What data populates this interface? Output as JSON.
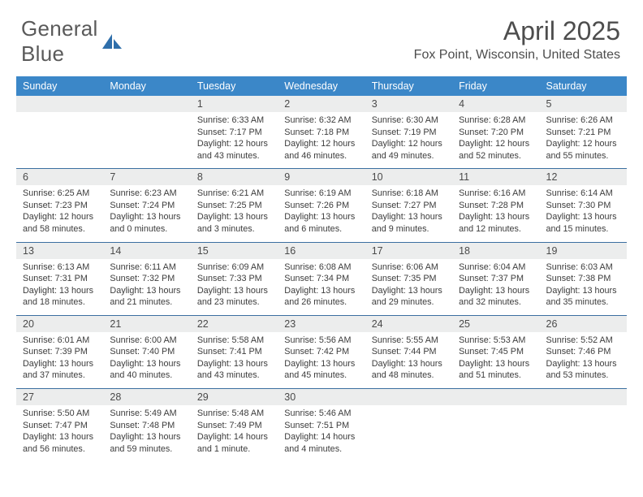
{
  "brand": {
    "part1": "General",
    "part2": "Blue"
  },
  "title": "April 2025",
  "location": "Fox Point, Wisconsin, United States",
  "colors": {
    "header_bg": "#3b87c8",
    "header_text": "#ffffff",
    "daynum_bg": "#eceded",
    "row_border": "#3b6fa0",
    "text": "#3c3c3c",
    "title_text": "#4d4d4d",
    "logo_text": "#5a5a5a",
    "logo_icon": "#2f6fab"
  },
  "days_of_week": [
    "Sunday",
    "Monday",
    "Tuesday",
    "Wednesday",
    "Thursday",
    "Friday",
    "Saturday"
  ],
  "weeks": [
    [
      null,
      null,
      {
        "n": "1",
        "sr": "Sunrise: 6:33 AM",
        "ss": "Sunset: 7:17 PM",
        "d1": "Daylight: 12 hours",
        "d2": "and 43 minutes."
      },
      {
        "n": "2",
        "sr": "Sunrise: 6:32 AM",
        "ss": "Sunset: 7:18 PM",
        "d1": "Daylight: 12 hours",
        "d2": "and 46 minutes."
      },
      {
        "n": "3",
        "sr": "Sunrise: 6:30 AM",
        "ss": "Sunset: 7:19 PM",
        "d1": "Daylight: 12 hours",
        "d2": "and 49 minutes."
      },
      {
        "n": "4",
        "sr": "Sunrise: 6:28 AM",
        "ss": "Sunset: 7:20 PM",
        "d1": "Daylight: 12 hours",
        "d2": "and 52 minutes."
      },
      {
        "n": "5",
        "sr": "Sunrise: 6:26 AM",
        "ss": "Sunset: 7:21 PM",
        "d1": "Daylight: 12 hours",
        "d2": "and 55 minutes."
      }
    ],
    [
      {
        "n": "6",
        "sr": "Sunrise: 6:25 AM",
        "ss": "Sunset: 7:23 PM",
        "d1": "Daylight: 12 hours",
        "d2": "and 58 minutes."
      },
      {
        "n": "7",
        "sr": "Sunrise: 6:23 AM",
        "ss": "Sunset: 7:24 PM",
        "d1": "Daylight: 13 hours",
        "d2": "and 0 minutes."
      },
      {
        "n": "8",
        "sr": "Sunrise: 6:21 AM",
        "ss": "Sunset: 7:25 PM",
        "d1": "Daylight: 13 hours",
        "d2": "and 3 minutes."
      },
      {
        "n": "9",
        "sr": "Sunrise: 6:19 AM",
        "ss": "Sunset: 7:26 PM",
        "d1": "Daylight: 13 hours",
        "d2": "and 6 minutes."
      },
      {
        "n": "10",
        "sr": "Sunrise: 6:18 AM",
        "ss": "Sunset: 7:27 PM",
        "d1": "Daylight: 13 hours",
        "d2": "and 9 minutes."
      },
      {
        "n": "11",
        "sr": "Sunrise: 6:16 AM",
        "ss": "Sunset: 7:28 PM",
        "d1": "Daylight: 13 hours",
        "d2": "and 12 minutes."
      },
      {
        "n": "12",
        "sr": "Sunrise: 6:14 AM",
        "ss": "Sunset: 7:30 PM",
        "d1": "Daylight: 13 hours",
        "d2": "and 15 minutes."
      }
    ],
    [
      {
        "n": "13",
        "sr": "Sunrise: 6:13 AM",
        "ss": "Sunset: 7:31 PM",
        "d1": "Daylight: 13 hours",
        "d2": "and 18 minutes."
      },
      {
        "n": "14",
        "sr": "Sunrise: 6:11 AM",
        "ss": "Sunset: 7:32 PM",
        "d1": "Daylight: 13 hours",
        "d2": "and 21 minutes."
      },
      {
        "n": "15",
        "sr": "Sunrise: 6:09 AM",
        "ss": "Sunset: 7:33 PM",
        "d1": "Daylight: 13 hours",
        "d2": "and 23 minutes."
      },
      {
        "n": "16",
        "sr": "Sunrise: 6:08 AM",
        "ss": "Sunset: 7:34 PM",
        "d1": "Daylight: 13 hours",
        "d2": "and 26 minutes."
      },
      {
        "n": "17",
        "sr": "Sunrise: 6:06 AM",
        "ss": "Sunset: 7:35 PM",
        "d1": "Daylight: 13 hours",
        "d2": "and 29 minutes."
      },
      {
        "n": "18",
        "sr": "Sunrise: 6:04 AM",
        "ss": "Sunset: 7:37 PM",
        "d1": "Daylight: 13 hours",
        "d2": "and 32 minutes."
      },
      {
        "n": "19",
        "sr": "Sunrise: 6:03 AM",
        "ss": "Sunset: 7:38 PM",
        "d1": "Daylight: 13 hours",
        "d2": "and 35 minutes."
      }
    ],
    [
      {
        "n": "20",
        "sr": "Sunrise: 6:01 AM",
        "ss": "Sunset: 7:39 PM",
        "d1": "Daylight: 13 hours",
        "d2": "and 37 minutes."
      },
      {
        "n": "21",
        "sr": "Sunrise: 6:00 AM",
        "ss": "Sunset: 7:40 PM",
        "d1": "Daylight: 13 hours",
        "d2": "and 40 minutes."
      },
      {
        "n": "22",
        "sr": "Sunrise: 5:58 AM",
        "ss": "Sunset: 7:41 PM",
        "d1": "Daylight: 13 hours",
        "d2": "and 43 minutes."
      },
      {
        "n": "23",
        "sr": "Sunrise: 5:56 AM",
        "ss": "Sunset: 7:42 PM",
        "d1": "Daylight: 13 hours",
        "d2": "and 45 minutes."
      },
      {
        "n": "24",
        "sr": "Sunrise: 5:55 AM",
        "ss": "Sunset: 7:44 PM",
        "d1": "Daylight: 13 hours",
        "d2": "and 48 minutes."
      },
      {
        "n": "25",
        "sr": "Sunrise: 5:53 AM",
        "ss": "Sunset: 7:45 PM",
        "d1": "Daylight: 13 hours",
        "d2": "and 51 minutes."
      },
      {
        "n": "26",
        "sr": "Sunrise: 5:52 AM",
        "ss": "Sunset: 7:46 PM",
        "d1": "Daylight: 13 hours",
        "d2": "and 53 minutes."
      }
    ],
    [
      {
        "n": "27",
        "sr": "Sunrise: 5:50 AM",
        "ss": "Sunset: 7:47 PM",
        "d1": "Daylight: 13 hours",
        "d2": "and 56 minutes."
      },
      {
        "n": "28",
        "sr": "Sunrise: 5:49 AM",
        "ss": "Sunset: 7:48 PM",
        "d1": "Daylight: 13 hours",
        "d2": "and 59 minutes."
      },
      {
        "n": "29",
        "sr": "Sunrise: 5:48 AM",
        "ss": "Sunset: 7:49 PM",
        "d1": "Daylight: 14 hours",
        "d2": "and 1 minute."
      },
      {
        "n": "30",
        "sr": "Sunrise: 5:46 AM",
        "ss": "Sunset: 7:51 PM",
        "d1": "Daylight: 14 hours",
        "d2": "and 4 minutes."
      },
      null,
      null,
      null
    ]
  ]
}
